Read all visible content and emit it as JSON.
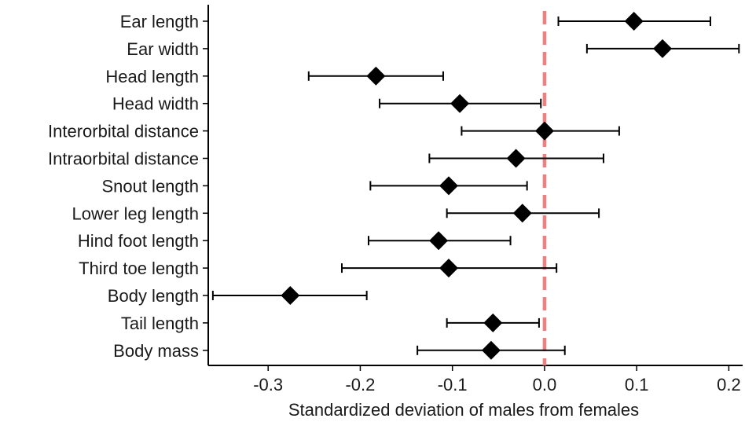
{
  "chart_data": {
    "type": "forest",
    "title": "",
    "xlabel": "Standardized deviation of males from females",
    "ylabel": "",
    "xlim": [
      -0.365,
      0.215
    ],
    "x_ticks": [
      -0.3,
      -0.2,
      -0.1,
      0.0,
      0.1,
      0.2
    ],
    "x_tick_labels": [
      "-0.3",
      "-0.2",
      "-0.1",
      "0.0",
      "0.1",
      "0.2"
    ],
    "reference_line": {
      "x": 0.0,
      "color": "#f08080",
      "style": "dashed"
    },
    "point_color": "#000000",
    "marker": "diamond",
    "grid": false,
    "legend": "none",
    "categories": [
      "Ear length",
      "Ear width",
      "Head length",
      "Head width",
      "Interorbital distance",
      "Intraorbital distance",
      "Snout length",
      "Lower leg length",
      "Hind foot length",
      "Third toe length",
      "Body length",
      "Tail length",
      "Body mass"
    ],
    "estimates": [
      0.097,
      0.128,
      -0.183,
      -0.092,
      0.0,
      -0.031,
      -0.104,
      -0.024,
      -0.115,
      -0.104,
      -0.276,
      -0.056,
      -0.058
    ],
    "ci_lower": [
      0.015,
      0.046,
      -0.256,
      -0.179,
      -0.09,
      -0.125,
      -0.189,
      -0.106,
      -0.191,
      -0.22,
      -0.36,
      -0.106,
      -0.138
    ],
    "ci_upper": [
      0.18,
      0.211,
      -0.11,
      -0.004,
      0.081,
      0.064,
      -0.019,
      0.059,
      -0.037,
      0.013,
      -0.193,
      -0.006,
      0.022
    ]
  }
}
